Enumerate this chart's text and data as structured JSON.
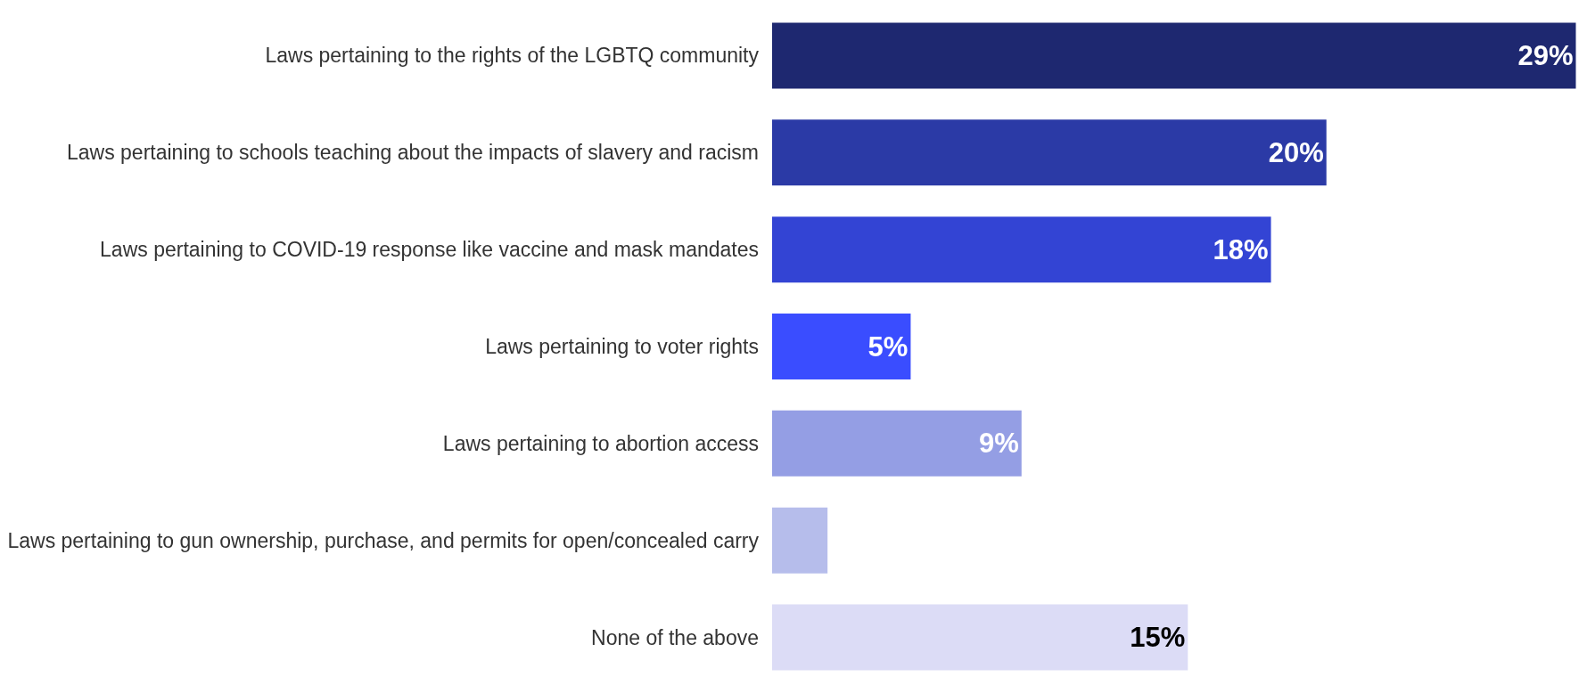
{
  "chart_data": {
    "type": "bar",
    "orientation": "horizontal",
    "categories": [
      "Laws pertaining to the rights of the LGBTQ community",
      "Laws pertaining to schools teaching about the impacts of slavery and racism",
      "Laws pertaining to COVID-19 response like vaccine and mask mandates",
      "Laws pertaining to voter rights",
      "Laws pertaining to abortion access",
      "Laws pertaining to gun ownership, purchase, and permits for open/concealed carry",
      "None of the above"
    ],
    "values": [
      29,
      20,
      18,
      5,
      9,
      2,
      15
    ],
    "value_labels": [
      "29%",
      "20%",
      "18%",
      "5%",
      "9%",
      null,
      "15%"
    ],
    "colors": [
      "#1e2870",
      "#2b3aa6",
      "#3344d4",
      "#3a4dff",
      "#949ee4",
      "#b6bdeb",
      "#dcdcf6"
    ],
    "legend": false,
    "tick_labels": "y"
  }
}
